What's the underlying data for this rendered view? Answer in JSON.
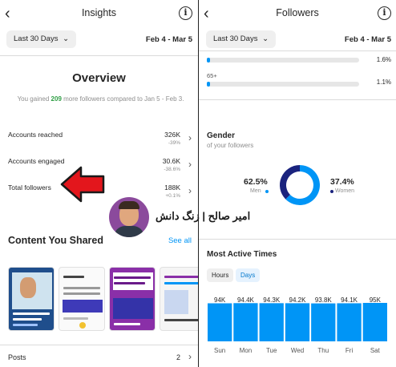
{
  "insights": {
    "back_glyph": "‹",
    "title": "Insights",
    "info_glyph": "i",
    "range_label": "Last 30 Days",
    "dropdown_glyph": "⌄",
    "date_range": "Feb 4 - Mar 5",
    "overview": {
      "title": "Overview",
      "sub_pre": "You gained ",
      "sub_num": "209",
      "sub_post": " more followers compared to Jan 5 - Feb 3."
    },
    "metrics": [
      {
        "label": "Accounts reached",
        "value": "326K",
        "change": "-39%"
      },
      {
        "label": "Accounts engaged",
        "value": "30.6K",
        "change": "-38.6%"
      },
      {
        "label": "Total followers",
        "value": "188K",
        "change": "+0.1%"
      }
    ],
    "chevron_glyph": "›",
    "watermark": "امیر صالح | زنگ دانش",
    "content_title": "Content You Shared",
    "see_all": "See all",
    "posts_label": "Posts",
    "posts_count": "2",
    "colors": {
      "accent": "#0095f6",
      "arrow": "#e3161c",
      "positive": "#2e9e44"
    }
  },
  "followers": {
    "back_glyph": "‹",
    "title": "Followers",
    "info_glyph": "i",
    "range_label": "Last 30 Days",
    "dropdown_glyph": "⌄",
    "date_range": "Feb 4 - Mar 5",
    "age_ranges": [
      {
        "label": "",
        "percent_text": "1.6%",
        "value": 1.6
      },
      {
        "label": "65+",
        "percent_text": "1.1%",
        "value": 1.1
      }
    ],
    "gender_title": "Gender",
    "gender_sub": "of your followers",
    "men_pct": "62.5%",
    "men_label": "Men",
    "women_pct": "37.4%",
    "women_label": "Women",
    "most_active_title": "Most Active Times",
    "tabs": [
      "Hours",
      "Days"
    ],
    "active_tab": "Days",
    "colors": {
      "men": "#0095f6",
      "women": "#1a237e",
      "bars": "#0095f6"
    }
  },
  "chart_data": [
    {
      "type": "pie",
      "labels": [
        "Men",
        "Women"
      ],
      "values": [
        62.5,
        37.4
      ]
    },
    {
      "type": "bar",
      "categories": [
        "Sun",
        "Mon",
        "Tue",
        "Wed",
        "Thu",
        "Fri",
        "Sat"
      ],
      "values": [
        94,
        94.4,
        94.3,
        94.2,
        93.8,
        94.1,
        95
      ],
      "value_labels": [
        "94K",
        "94.4K",
        "94.3K",
        "94.2K",
        "93.8K",
        "94.1K",
        "95K"
      ]
    }
  ]
}
